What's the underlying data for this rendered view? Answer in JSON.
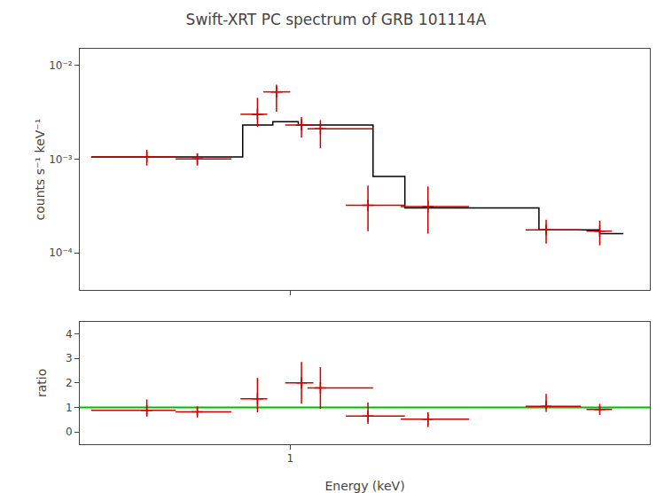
{
  "chart_data": [
    {
      "type": "scatter",
      "title": "Swift-XRT PC spectrum of GRB 101114A",
      "ylabel": "counts s⁻¹ keV⁻¹",
      "log": true,
      "grid": false,
      "tick_labels": "y",
      "xlim": [
        0.28,
        8.8
      ],
      "xticks": [
        1
      ],
      "ylim": [
        4e-05,
        0.015
      ],
      "yticks": [
        {
          "value": 0.0001,
          "label": "10⁻⁴"
        },
        {
          "value": 0.001,
          "label": "10⁻³"
        },
        {
          "value": 0.01,
          "label": "10⁻²"
        }
      ],
      "series": [
        {
          "type": "step",
          "color": "#000000",
          "bins": [
            0.3,
            0.72,
            0.75,
            0.9,
            1.05,
            1.2,
            1.65,
            2.0,
            4.5,
            6.5,
            7.5
          ],
          "values": [
            0.00105,
            0.00105,
            0.0023,
            0.0025,
            0.0023,
            0.0023,
            0.00065,
            0.0003,
            0.000175,
            0.00016
          ]
        },
        {
          "type": "scatter",
          "marker": "plus",
          "color": "#cc0000",
          "x": [
            0.42,
            0.57,
            0.82,
            0.92,
            1.07,
            1.2,
            1.6,
            2.3,
            4.7,
            6.5
          ],
          "values": [
            0.00105,
            0.001,
            0.003,
            0.0052,
            0.0023,
            0.0021,
            0.00032,
            0.00031,
            0.000175,
            0.00017
          ],
          "xerr_lo": [
            0.12,
            0.07,
            0.08,
            0.07,
            0.1,
            0.09,
            0.2,
            0.35,
            0.55,
            0.5
          ],
          "xerr_hi": [
            0.08,
            0.13,
            0.05,
            0.08,
            0.08,
            0.45,
            0.4,
            0.65,
            1.1,
            0.5
          ],
          "yerr_lo": [
            0.0002,
            0.00015,
            0.0008,
            0.002,
            0.0006,
            0.0008,
            0.00015,
            0.00015,
            5e-05,
            5e-05
          ],
          "yerr_hi": [
            0.0002,
            0.00015,
            0.0015,
            0.001,
            0.0005,
            0.0005,
            0.0002,
            0.0002,
            5e-05,
            5e-05
          ]
        }
      ]
    },
    {
      "type": "scatter",
      "xlabel": "Energy (keV)",
      "ylabel": "ratio",
      "log": "x",
      "grid": false,
      "xlim": [
        0.28,
        8.8
      ],
      "xticks": [
        1
      ],
      "ylim": [
        -0.5,
        4.5
      ],
      "yticks": [
        0,
        1,
        2,
        3,
        4
      ],
      "series": [
        {
          "type": "hline",
          "color": "#00bb00",
          "values": [
            1.0
          ]
        },
        {
          "type": "scatter",
          "marker": "plus",
          "color": "#cc0000",
          "x": [
            0.42,
            0.57,
            0.82,
            1.07,
            1.2,
            1.6,
            2.3,
            4.7,
            6.5
          ],
          "values": [
            0.88,
            0.82,
            1.35,
            2.0,
            1.8,
            0.65,
            0.52,
            1.05,
            0.92
          ],
          "xerr_lo": [
            0.12,
            0.07,
            0.08,
            0.1,
            0.09,
            0.2,
            0.35,
            0.55,
            0.5
          ],
          "xerr_hi": [
            0.08,
            0.13,
            0.05,
            0.08,
            0.45,
            0.4,
            0.65,
            1.1,
            0.5
          ],
          "yerr_lo": [
            0.25,
            0.15,
            0.55,
            0.85,
            0.85,
            0.32,
            0.32,
            0.1,
            0.1
          ],
          "yerr_hi": [
            0.45,
            0.18,
            0.85,
            0.85,
            0.85,
            0.55,
            0.28,
            0.5,
            0.1
          ]
        }
      ]
    }
  ]
}
